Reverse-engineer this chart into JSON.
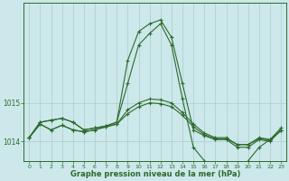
{
  "xlabel": "Graphe pression niveau de la mer (hPa)",
  "background_color": "#cce8ea",
  "plot_background": "#cce8ea",
  "line_color": "#2d6a2d",
  "grid_color": "#aacccc",
  "x_hours": [
    0,
    1,
    2,
    3,
    4,
    5,
    6,
    7,
    8,
    9,
    10,
    11,
    12,
    13,
    14,
    15,
    16,
    17,
    18,
    19,
    20,
    21,
    22,
    23
  ],
  "series": [
    [
      1014.1,
      1014.5,
      1014.55,
      1014.6,
      1014.5,
      1014.3,
      1014.35,
      1014.4,
      1014.5,
      1016.1,
      1016.85,
      1017.05,
      1017.15,
      1016.7,
      1015.5,
      1014.3,
      1014.15,
      1014.05,
      1014.05,
      1013.85,
      1013.85,
      1014.05,
      1014.0,
      1014.3
    ],
    [
      1014.1,
      1014.45,
      1014.3,
      1014.42,
      1014.3,
      1014.25,
      1014.3,
      1014.38,
      1014.45,
      1014.82,
      1015.0,
      1015.1,
      1015.08,
      1015.0,
      1014.75,
      1014.45,
      1014.22,
      1014.1,
      1014.1,
      1013.92,
      1013.92,
      1014.1,
      1014.05,
      1014.28
    ],
    [
      1014.1,
      1014.45,
      1014.3,
      1014.42,
      1014.3,
      1014.25,
      1014.3,
      1014.38,
      1014.45,
      1014.72,
      1014.9,
      1015.0,
      1014.98,
      1014.9,
      1014.68,
      1014.38,
      1014.18,
      1014.07,
      1014.07,
      1013.92,
      1013.92,
      1014.07,
      1014.04,
      1014.28
    ],
    [
      1014.1,
      1014.5,
      1014.55,
      1014.6,
      1014.5,
      1014.3,
      1014.35,
      1014.4,
      1014.5,
      1015.5,
      1016.5,
      1016.8,
      1017.05,
      1016.5,
      1015.1,
      1013.85,
      1013.5,
      1013.35,
      1013.25,
      1013.1,
      1013.5,
      1013.85,
      1014.05,
      1014.35
    ]
  ],
  "ylim_min": 1013.5,
  "ylim_max": 1017.6,
  "yticks": [
    1014,
    1015
  ],
  "ytick_labels": [
    "1014",
    "1015"
  ],
  "line_width": 0.8,
  "marker": "+",
  "marker_size": 3,
  "marker_edge_width": 0.8,
  "xlabel_fontsize": 6.0,
  "xtick_fontsize": 4.5,
  "ytick_fontsize": 5.5
}
